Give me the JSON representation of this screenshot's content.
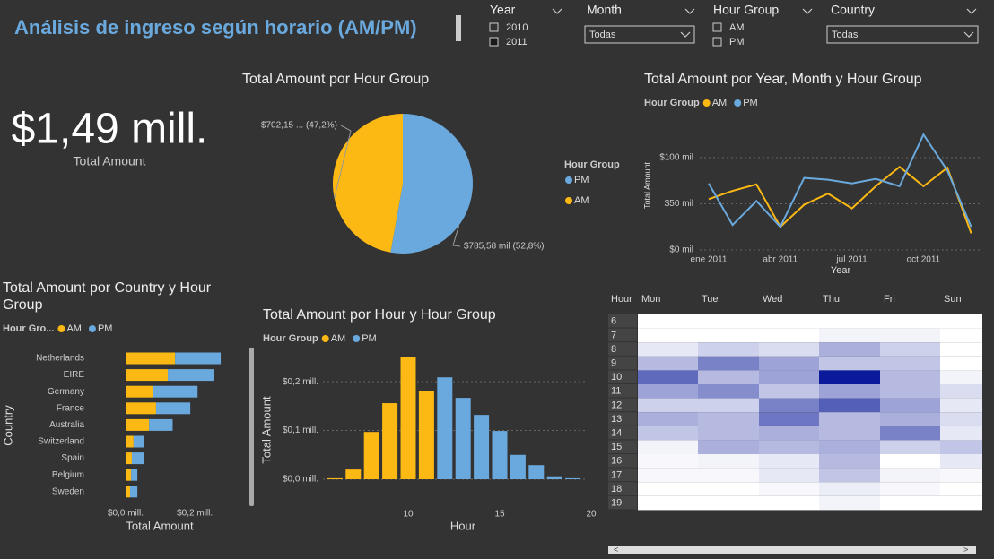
{
  "header": {
    "title": "Análisis de ingreso según horario (AM/PM)"
  },
  "slicers": [
    {
      "title": "Year",
      "options": [
        "2010",
        "2011"
      ],
      "selected": [
        false,
        true
      ]
    },
    {
      "title": "Month",
      "dropdown": "Todas"
    },
    {
      "title": "Hour Group",
      "options": [
        "AM",
        "PM"
      ],
      "selected": [
        false,
        false
      ]
    },
    {
      "title": "Country",
      "dropdown": "Todas"
    }
  ],
  "kpi": {
    "value": "$1,49 mill.",
    "label": "Total Amount"
  },
  "chart_data": [
    {
      "type": "pie",
      "title": "Total Amount por Hour Group",
      "legend_title": "Hour Group",
      "categories": [
        "PM",
        "AM"
      ],
      "values": [
        785580,
        702150
      ],
      "value_labels": [
        "$785,58 mil (52,8%)",
        "$702,15 ... (47,2%)"
      ],
      "colors": [
        "#6aa9dd",
        "#fdb913"
      ]
    },
    {
      "type": "line",
      "title": "Total Amount por Year, Month y Hour Group",
      "legend_title": "Hour Group",
      "x_label": "Year",
      "y_label": "Total Amount",
      "categories": [
        "ene 2011",
        null,
        null,
        "abr 2011",
        null,
        null,
        "jul 2011",
        null,
        null,
        "oct 2011",
        null,
        null
      ],
      "series": [
        {
          "name": "AM",
          "color": "#fdb913",
          "values": [
            55000,
            64000,
            71000,
            25000,
            49000,
            61000,
            45000,
            69000,
            90000,
            69000,
            89000,
            18000
          ]
        },
        {
          "name": "PM",
          "color": "#6aa9dd",
          "values": [
            72000,
            27000,
            53000,
            25000,
            78000,
            76000,
            72000,
            77000,
            69000,
            125000,
            86000,
            25000
          ]
        }
      ],
      "ylim": [
        0,
        130000
      ],
      "yticks": [
        {
          "value": 0,
          "label": "$0 mil"
        },
        {
          "value": 50000,
          "label": "$50 mil"
        },
        {
          "value": 100000,
          "label": "$100 mil"
        }
      ],
      "grid": true
    },
    {
      "type": "hbar_stacked",
      "title": "Total Amount por Country y Hour Group",
      "legend_title": "Hour Gro...",
      "x_label": "Total Amount",
      "y_label": "Country",
      "categories": [
        "Netherlands",
        "EIRE",
        "Germany",
        "France",
        "Australia",
        "Switzerland",
        "Spain",
        "Belgium",
        "Sweden"
      ],
      "series": [
        {
          "name": "AM",
          "color": "#fdb913",
          "values": [
            143000,
            122000,
            78000,
            88000,
            68000,
            23000,
            18000,
            16000,
            13000
          ]
        },
        {
          "name": "PM",
          "color": "#6aa9dd",
          "values": [
            132000,
            132000,
            130000,
            99000,
            68000,
            31000,
            36000,
            18000,
            21000
          ]
        }
      ],
      "xlim": [
        0,
        280000
      ],
      "xticks": [
        {
          "value": 0,
          "label": "$0,0 mill."
        },
        {
          "value": 200000,
          "label": "$0,2 mill."
        }
      ]
    },
    {
      "type": "bar",
      "title": "Total Amount por Hour y Hour Group",
      "legend_title": "Hour Group",
      "x_label": "Hour",
      "y_label": "Total Amount",
      "x": [
        6,
        7,
        8,
        9,
        10,
        11,
        12,
        13,
        14,
        15,
        16,
        17,
        18,
        19
      ],
      "series": [
        {
          "name": "AM",
          "color": "#fdb913",
          "values": [
            2000,
            20000,
            97000,
            156000,
            250000,
            180000,
            null,
            null,
            null,
            null,
            null,
            null,
            null,
            null
          ]
        },
        {
          "name": "PM",
          "color": "#6aa9dd",
          "values": [
            null,
            null,
            null,
            null,
            null,
            null,
            209000,
            167000,
            132000,
            99000,
            50000,
            29000,
            6000,
            2000
          ]
        }
      ],
      "xlim": [
        5,
        20
      ],
      "xticks": [
        10,
        15,
        20
      ],
      "ylim": [
        0,
        270000
      ],
      "yticks": [
        {
          "value": 0,
          "label": "$0,0 mill."
        },
        {
          "value": 100000,
          "label": "$0,1 mill."
        },
        {
          "value": 200000,
          "label": "$0,2 mill."
        }
      ],
      "grid": true
    },
    {
      "type": "heatmap",
      "row_header": "Hour",
      "columns": [
        "Mon",
        "Tue",
        "Wed",
        "Thu",
        "Fri",
        "Sun"
      ],
      "rows": [
        6,
        7,
        8,
        9,
        10,
        11,
        12,
        13,
        14,
        15,
        16,
        17,
        18,
        19
      ],
      "color": "#0b1a9a",
      "values": [
        [
          0,
          0,
          0,
          0,
          0,
          0
        ],
        [
          0,
          0,
          0,
          5,
          5,
          0
        ],
        [
          10,
          20,
          15,
          35,
          20,
          0
        ],
        [
          30,
          55,
          40,
          25,
          25,
          0
        ],
        [
          65,
          30,
          40,
          100,
          30,
          5
        ],
        [
          40,
          50,
          25,
          40,
          30,
          15
        ],
        [
          20,
          20,
          55,
          70,
          40,
          10
        ],
        [
          35,
          30,
          60,
          30,
          35,
          15
        ],
        [
          25,
          30,
          35,
          30,
          55,
          10
        ],
        [
          5,
          35,
          30,
          35,
          20,
          25
        ],
        [
          3,
          5,
          10,
          30,
          0,
          10
        ],
        [
          3,
          3,
          10,
          25,
          5,
          3
        ],
        [
          0,
          0,
          3,
          8,
          3,
          0
        ],
        [
          0,
          0,
          0,
          5,
          0,
          0
        ]
      ]
    }
  ]
}
